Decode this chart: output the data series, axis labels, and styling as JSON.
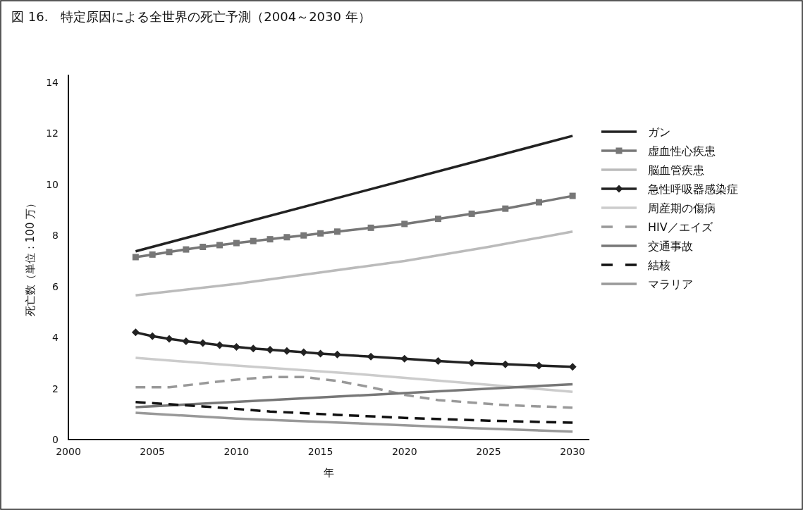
{
  "chart_data": {
    "type": "line",
    "title": "図 16.　特定原因による全世界の死亡予測（2004～2030 年）",
    "xlabel": "年",
    "ylabel": "死亡数（単位：100 万）",
    "xlim": [
      2000,
      2031
    ],
    "xticks": [
      2000,
      2005,
      2010,
      2015,
      2020,
      2025,
      2030
    ],
    "ylim": [
      0,
      14.3
    ],
    "yticks": [
      0,
      2,
      4,
      6,
      8,
      10,
      12,
      14
    ],
    "grid": false,
    "legend": "right",
    "series": [
      {
        "name": "ガン",
        "color": "#222222",
        "x": [
          2004,
          2030
        ],
        "values": [
          7.38,
          11.9
        ]
      },
      {
        "name": "虚血性心疾患",
        "color": "#777777",
        "marker": "square",
        "x": [
          2004,
          2005,
          2006,
          2007,
          2008,
          2009,
          2010,
          2011,
          2012,
          2013,
          2014,
          2015,
          2016,
          2018,
          2020,
          2022,
          2024,
          2026,
          2028,
          2030
        ],
        "values": [
          7.15,
          7.25,
          7.35,
          7.45,
          7.55,
          7.62,
          7.7,
          7.78,
          7.85,
          7.93,
          8.0,
          8.08,
          8.15,
          8.3,
          8.45,
          8.65,
          8.85,
          9.05,
          9.3,
          9.55
        ]
      },
      {
        "name": "脳血管疾患",
        "color": "#bbbbbb",
        "x": [
          2004,
          2010,
          2015,
          2020,
          2025,
          2030
        ],
        "values": [
          5.65,
          6.1,
          6.55,
          7.0,
          7.55,
          8.15
        ]
      },
      {
        "name": "急性呼吸器感染症",
        "color": "#222222",
        "marker": "diamond",
        "x": [
          2004,
          2005,
          2006,
          2007,
          2008,
          2009,
          2010,
          2011,
          2012,
          2013,
          2014,
          2015,
          2016,
          2018,
          2020,
          2022,
          2024,
          2026,
          2028,
          2030
        ],
        "values": [
          4.2,
          4.05,
          3.95,
          3.85,
          3.78,
          3.7,
          3.63,
          3.57,
          3.52,
          3.47,
          3.42,
          3.37,
          3.33,
          3.25,
          3.17,
          3.08,
          3.0,
          2.95,
          2.9,
          2.85
        ]
      },
      {
        "name": "周産期の傷病",
        "color": "#cccccc",
        "x": [
          2004,
          2010,
          2017,
          2024,
          2030
        ],
        "values": [
          3.2,
          2.9,
          2.58,
          2.2,
          1.87
        ]
      },
      {
        "name": "HIV／エイズ",
        "color": "#999999",
        "line_style": "dashed",
        "x": [
          2004,
          2006,
          2008,
          2010,
          2012,
          2014,
          2016,
          2018,
          2020,
          2022,
          2024,
          2026,
          2028,
          2030
        ],
        "values": [
          2.05,
          2.05,
          2.2,
          2.35,
          2.45,
          2.45,
          2.3,
          2.05,
          1.75,
          1.55,
          1.45,
          1.35,
          1.3,
          1.25
        ]
      },
      {
        "name": "交通事故",
        "color": "#777777",
        "x": [
          2004,
          2030
        ],
        "values": [
          1.27,
          2.17
        ]
      },
      {
        "name": "結核",
        "color": "#111111",
        "line_style": "dashed",
        "x": [
          2004,
          2008,
          2012,
          2016,
          2020,
          2025,
          2030
        ],
        "values": [
          1.47,
          1.3,
          1.1,
          0.97,
          0.85,
          0.74,
          0.66
        ]
      },
      {
        "name": "マラリア",
        "color": "#999999",
        "x": [
          2004,
          2010,
          2017,
          2024,
          2030
        ],
        "values": [
          1.05,
          0.82,
          0.64,
          0.45,
          0.31
        ]
      }
    ]
  }
}
